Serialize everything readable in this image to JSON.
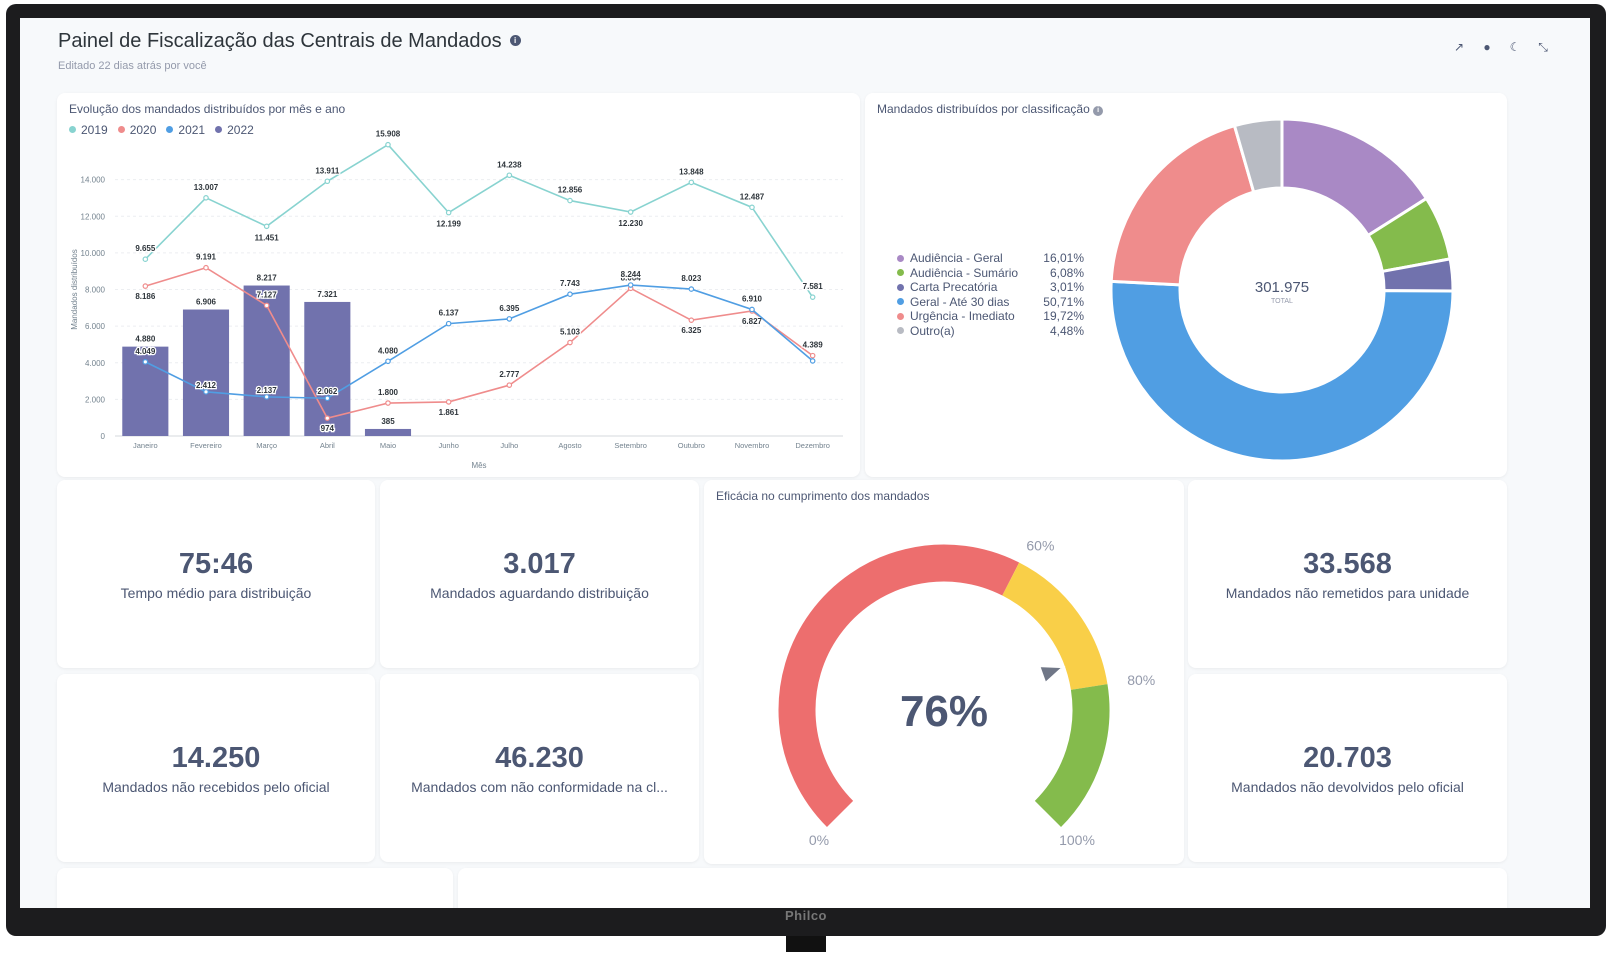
{
  "device": {
    "brand": "Philco"
  },
  "header": {
    "title": "Painel de Fiscalização das Centrais de Mandados",
    "subtitle": "Editado 22 dias atrás por você",
    "info_icon": "info-icon",
    "actions": [
      "share-icon",
      "clock-icon",
      "moon-icon",
      "fullscreen-icon"
    ]
  },
  "line_chart": {
    "title": "Evolução dos mandados distribuídos por mês e ano",
    "ylabel": "Mandados distribuídos",
    "xlabel": "Mês"
  },
  "donut_chart": {
    "title": "Mandados distribuídos por classificação",
    "total_value": "301.975",
    "total_label": "TOTAL"
  },
  "gauge": {
    "title": "Eficácia no cumprimento dos mandados",
    "value_label": "76%",
    "value": 0.76,
    "labels": [
      "0%",
      "60%",
      "80%",
      "100%"
    ]
  },
  "kpis": [
    {
      "value": "75:46",
      "label": "Tempo médio para distribuição"
    },
    {
      "value": "3.017",
      "label": "Mandados aguardando distribuição"
    },
    {
      "value": "33.568",
      "label": "Mandados não remetidos para unidade"
    },
    {
      "value": "14.250",
      "label": "Mandados não recebidos pelo oficial"
    },
    {
      "value": "46.230",
      "label": "Mandados com não conformidade na cl..."
    },
    {
      "value": "20.703",
      "label": "Mandados não devolvidos pelo oficial"
    }
  ],
  "colors": {
    "y2019": "#88d3d0",
    "y2020": "#ef8c8c",
    "y2021": "#509ee3",
    "y2022": "#7172ad",
    "gauge_red": "#ed6e6e",
    "gauge_yellow": "#f9cf48",
    "gauge_green": "#84bb4c"
  },
  "chart_data": [
    {
      "type": "line",
      "title": "Evolução dos mandados distribuídos por mês e ano",
      "xlabel": "Mês",
      "ylabel": "Mandados distribuídos",
      "ylim": [
        0,
        16000
      ],
      "yticks": [
        "0",
        "2.000",
        "4.000",
        "6.000",
        "8.000",
        "10.000",
        "12.000",
        "14.000"
      ],
      "categories": [
        "Janeiro",
        "Fevereiro",
        "Março",
        "Abril",
        "Maio",
        "Junho",
        "Julho",
        "Agosto",
        "Setembro",
        "Outubro",
        "Novembro",
        "Dezembro"
      ],
      "series": [
        {
          "name": "2019",
          "kind": "line",
          "color": "#88d3d0",
          "values": [
            9655,
            13007,
            11451,
            13911,
            15908,
            12199,
            14238,
            12856,
            12230,
            13848,
            12487,
            7581
          ],
          "labels": [
            "9.655",
            "13.007",
            "11.451",
            "13.911",
            "15.908",
            "12.199",
            "14.238",
            "12.856",
            "12.230",
            "13.848",
            "12.487",
            "7.581"
          ]
        },
        {
          "name": "2020",
          "kind": "line",
          "color": "#ef8c8c",
          "values": [
            8186,
            9191,
            7127,
            974,
            1800,
            1861,
            2777,
            5103,
            8064,
            6325,
            6827,
            4389
          ],
          "labels": [
            "8.186",
            "9.191",
            "7.127",
            "974",
            "1.800",
            "1.861",
            "2.777",
            "5.103",
            "8.064",
            "6.325",
            "6.827",
            "4.389"
          ]
        },
        {
          "name": "2021",
          "kind": "line",
          "color": "#509ee3",
          "values": [
            4049,
            2412,
            2137,
            2062,
            4080,
            6137,
            6395,
            7743,
            8244,
            8023,
            6910,
            4100
          ],
          "labels": [
            "4.049",
            "2.412",
            "2.137",
            "2.062",
            "4.080",
            "6.137",
            "6.395",
            "7.743",
            "8.244",
            "8.023",
            "6.910",
            ""
          ]
        },
        {
          "name": "2022",
          "kind": "bar",
          "color": "#7172ad",
          "values": [
            4880,
            6906,
            8217,
            7321,
            385,
            null,
            null,
            null,
            null,
            null,
            null,
            null
          ],
          "labels": [
            "4.880",
            "6.906",
            "8.217",
            "7.321",
            "385",
            "",
            "",
            "",
            "",
            "",
            "",
            ""
          ]
        }
      ]
    },
    {
      "type": "pie",
      "title": "Mandados distribuídos por classificação",
      "total": "301.975",
      "slices": [
        {
          "name": "Audiência - Geral",
          "value": 16.01,
          "pct": "16,01%",
          "color": "#a989c5"
        },
        {
          "name": "Audiência - Sumário",
          "value": 6.08,
          "pct": "6,08%",
          "color": "#84bb4c"
        },
        {
          "name": "Carta Precatória",
          "value": 3.01,
          "pct": "3,01%",
          "color": "#7172ad"
        },
        {
          "name": "Geral - Até 30 dias",
          "value": 50.71,
          "pct": "50,71%",
          "color": "#509ee3"
        },
        {
          "name": "Urgência - Imediato",
          "value": 19.72,
          "pct": "19,72%",
          "color": "#ef8c8c"
        },
        {
          "name": "Outro(a)",
          "value": 4.48,
          "pct": "4,48%",
          "color": "#b8bbc3"
        }
      ]
    }
  ]
}
